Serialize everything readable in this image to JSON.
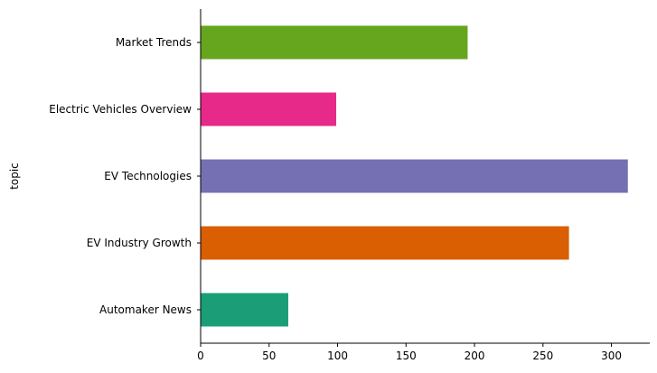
{
  "chart_data": {
    "type": "bar",
    "orientation": "horizontal",
    "title": "",
    "xlabel": "",
    "ylabel": "topic",
    "categories": [
      "Automaker News",
      "EV Industry Growth",
      "EV Technologies",
      "Electric Vehicles Overview",
      "Market Trends"
    ],
    "values": [
      64,
      269,
      312,
      99,
      195
    ],
    "colors": [
      "#1b9e77",
      "#d95f02",
      "#7570b3",
      "#e7298a",
      "#66a61e"
    ],
    "xlim": [
      0,
      328
    ],
    "xticks": [
      0,
      50,
      100,
      150,
      200,
      250,
      300
    ],
    "grid": false,
    "legend": "none"
  }
}
